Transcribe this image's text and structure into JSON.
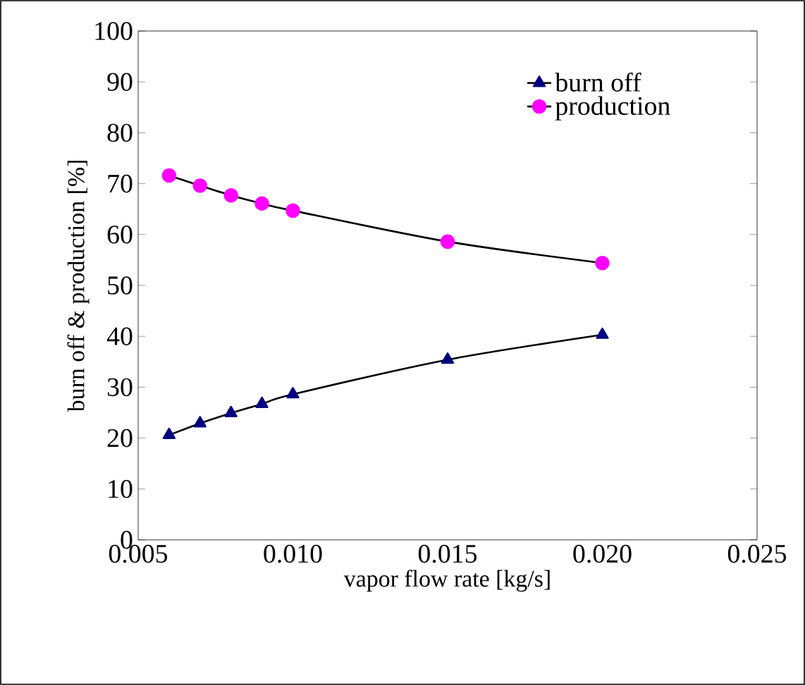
{
  "chart_data": {
    "type": "line",
    "xlabel": "vapor flow rate [kg/s]",
    "ylabel": "burn off & production [%]",
    "x": [
      0.006,
      0.007,
      0.008,
      0.009,
      0.01,
      0.015,
      0.02
    ],
    "series": [
      {
        "name": "burn off",
        "color": "#000080",
        "marker": "triangle",
        "values": [
          20.6,
          22.9,
          24.9,
          26.7,
          28.6,
          35.4,
          40.3
        ]
      },
      {
        "name": "production",
        "color": "#ff00ff",
        "marker": "circle",
        "values": [
          71.6,
          69.6,
          67.7,
          66.1,
          64.7,
          58.6,
          54.4
        ]
      }
    ],
    "xlim": [
      0.005,
      0.025
    ],
    "xticks": [
      {
        "value": 0.005,
        "label": "0.005"
      },
      {
        "value": 0.01,
        "label": "0.010"
      },
      {
        "value": 0.015,
        "label": "0.015"
      },
      {
        "value": 0.02,
        "label": "0.020"
      },
      {
        "value": 0.025,
        "label": "0.025"
      }
    ],
    "ylim": [
      0,
      100
    ],
    "yticks": [
      0,
      10,
      20,
      30,
      40,
      50,
      60,
      70,
      80,
      90,
      100
    ],
    "legend": "top right",
    "grid": false
  }
}
